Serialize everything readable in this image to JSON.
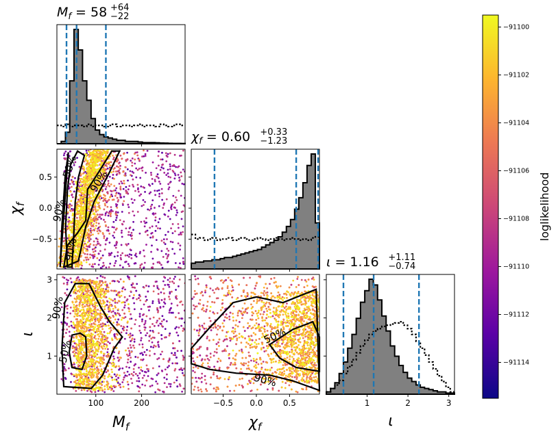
{
  "colors": {
    "hist_fill": "#808080",
    "outline": "#000000",
    "quantile_line": "#1f77b4",
    "colormap": [
      "#0d0887",
      "#5c01a6",
      "#9c179e",
      "#cc4778",
      "#ed7953",
      "#fdb42f",
      "#f0f921"
    ]
  },
  "chart_data": {
    "type": "corner",
    "parameters": [
      {
        "key": "Mf",
        "label": "M_f",
        "title_value": "58",
        "title_plus": "+64",
        "title_minus": "−22",
        "range": [
          15,
          295
        ],
        "ticks": [
          100,
          200
        ],
        "tick_labels": [
          "100",
          "200"
        ],
        "median": 58,
        "quantiles": [
          36,
          58,
          122
        ]
      },
      {
        "key": "chif",
        "label": "χ_f",
        "title_value": "0.60",
        "title_plus": "+0.33",
        "title_minus": "−1.23",
        "range": [
          -0.98,
          0.95
        ],
        "ticks": [
          -0.5,
          0.0,
          0.5
        ],
        "tick_labels": [
          "−0.5",
          "0.0",
          "0.5"
        ],
        "median": 0.6,
        "quantiles": [
          -0.63,
          0.6,
          0.93
        ]
      },
      {
        "key": "iota",
        "label": "ι",
        "title_value": "1.16",
        "title_plus": "+1.11",
        "title_minus": "−0.74",
        "range": [
          0,
          3.14
        ],
        "ticks": [
          1,
          2,
          3
        ],
        "tick_labels": [
          "1",
          "2",
          "3"
        ],
        "median": 1.16,
        "quantiles": [
          0.42,
          1.16,
          2.27
        ]
      }
    ],
    "histograms": {
      "Mf": {
        "bins_from": 15,
        "bins_to": 295,
        "posterior": [
          0.0,
          0.02,
          0.1,
          0.55,
          1.0,
          0.82,
          0.55,
          0.38,
          0.22,
          0.12,
          0.08,
          0.06,
          0.05,
          0.04,
          0.03,
          0.03,
          0.02,
          0.02,
          0.02,
          0.015,
          0.01,
          0.01,
          0.01,
          0.008,
          0.006,
          0.005,
          0.004,
          0.003,
          0.003,
          0.002
        ],
        "prior": [
          0.16,
          0.15,
          0.17,
          0.15,
          0.16,
          0.16,
          0.15,
          0.17,
          0.15,
          0.16,
          0.16,
          0.15,
          0.16,
          0.17,
          0.15,
          0.16,
          0.16,
          0.15,
          0.16,
          0.17,
          0.15,
          0.16,
          0.16,
          0.15,
          0.17,
          0.16,
          0.15,
          0.16,
          0.17,
          0.16
        ]
      },
      "chif": {
        "bins_from": -0.98,
        "bins_to": 0.95,
        "posterior": [
          0.05,
          0.06,
          0.06,
          0.07,
          0.07,
          0.08,
          0.08,
          0.09,
          0.1,
          0.1,
          0.11,
          0.12,
          0.13,
          0.14,
          0.15,
          0.16,
          0.17,
          0.19,
          0.21,
          0.23,
          0.25,
          0.28,
          0.32,
          0.37,
          0.43,
          0.52,
          0.62,
          0.75,
          0.9,
          1.0,
          0.4
        ],
        "prior": [
          0.3,
          0.26,
          0.27,
          0.25,
          0.26,
          0.27,
          0.25,
          0.26,
          0.26,
          0.27,
          0.25,
          0.26,
          0.27,
          0.26,
          0.25,
          0.26,
          0.27,
          0.26,
          0.25,
          0.26,
          0.27,
          0.26,
          0.25,
          0.26,
          0.27,
          0.26,
          0.25,
          0.26,
          0.25,
          0.27,
          0.28
        ]
      },
      "iota": {
        "bins_from": 0,
        "bins_to": 3.14,
        "posterior": [
          0.02,
          0.05,
          0.1,
          0.18,
          0.28,
          0.4,
          0.52,
          0.66,
          0.8,
          0.9,
          1.0,
          0.95,
          0.82,
          0.68,
          0.55,
          0.42,
          0.33,
          0.25,
          0.19,
          0.14,
          0.11,
          0.08,
          0.06,
          0.05,
          0.04,
          0.03,
          0.02,
          0.02,
          0.01,
          0.01
        ],
        "prior": [
          0.02,
          0.05,
          0.08,
          0.12,
          0.18,
          0.24,
          0.3,
          0.36,
          0.42,
          0.47,
          0.52,
          0.55,
          0.57,
          0.59,
          0.6,
          0.61,
          0.62,
          0.63,
          0.6,
          0.57,
          0.52,
          0.46,
          0.4,
          0.34,
          0.28,
          0.22,
          0.16,
          0.11,
          0.06,
          0.02
        ]
      }
    },
    "contour_labels": [
      "50%",
      "90%"
    ],
    "colorbar": {
      "label": "loglikelihood",
      "range": [
        -91115.5,
        -91099.5
      ],
      "ticks": [
        -91100,
        -91102,
        -91104,
        -91106,
        -91108,
        -91110,
        -91112,
        -91114
      ],
      "tick_labels": [
        "−91100",
        "−91102",
        "−91104",
        "−91106",
        "−91108",
        "−91110",
        "−91112",
        "−91114"
      ]
    }
  }
}
